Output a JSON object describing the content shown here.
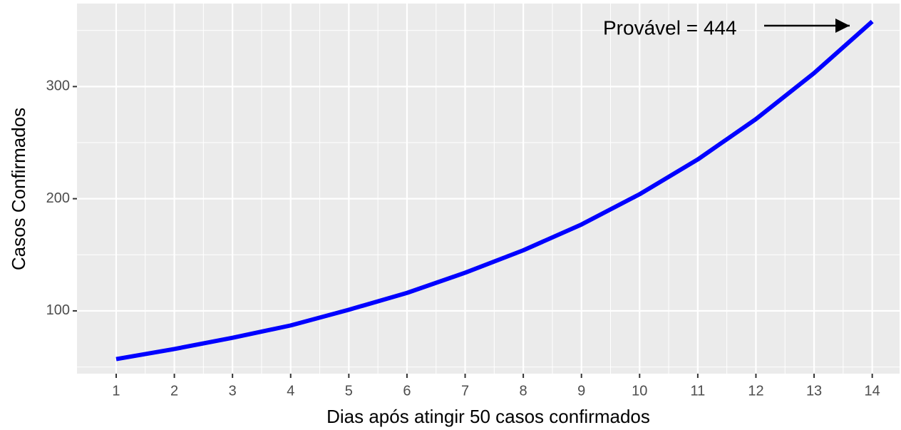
{
  "chart_data": {
    "type": "line",
    "x_label": "Dias após atingir 50 casos confirmados",
    "y_label": "Casos Confirmados",
    "annotation": "Provável = 444",
    "x": [
      1,
      2,
      3,
      4,
      5,
      6,
      7,
      8,
      9,
      10,
      11,
      12,
      13,
      14
    ],
    "series": [
      {
        "color": "#0000ff",
        "values": [
          57,
          66,
          76,
          87,
          101,
          116,
          134,
          154,
          177,
          204,
          235,
          271,
          312,
          358
        ]
      }
    ],
    "xlim": [
      0.326,
      14.47
    ],
    "xticks": [
      1,
      2,
      3,
      4,
      5,
      6,
      7,
      8,
      9,
      10,
      11,
      12,
      13,
      14
    ],
    "x_minor_ticks": [
      1.5,
      2.5,
      3.5,
      4.5,
      5.5,
      6.5,
      7.5,
      8.5,
      9.5,
      10.5,
      11.5,
      12.5,
      13.5
    ],
    "ylim": [
      44,
      374
    ],
    "yticks": [
      100,
      200,
      300
    ],
    "y_minor_ticks": [
      50,
      150,
      250,
      350
    ],
    "grid": true
  }
}
